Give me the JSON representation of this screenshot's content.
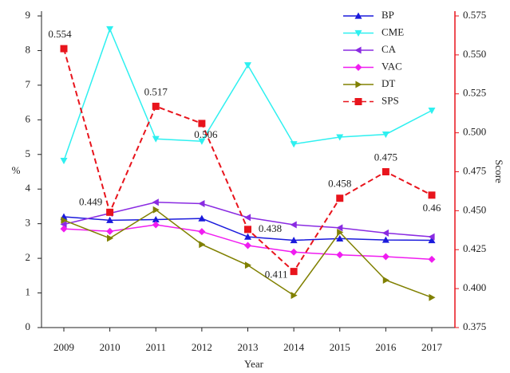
{
  "chart_data": {
    "type": "line",
    "x_label": "Year",
    "y_label": "%",
    "y2_label": "Score",
    "categories": [
      "2009",
      "2010",
      "2011",
      "2012",
      "2013",
      "2014",
      "2015",
      "2016",
      "2017"
    ],
    "ylim": [
      0,
      9
    ],
    "yticks": [
      0,
      1,
      2,
      3,
      4,
      5,
      6,
      7,
      8,
      9
    ],
    "y2lim": [
      0.375,
      0.575
    ],
    "y2ticks": [
      0.375,
      {
        "value": 0.4,
        "label": "0.400"
      },
      0.425,
      {
        "value": 0.45,
        "label": "0.450"
      },
      0.475,
      {
        "value": 0.5,
        "label": "0.500"
      },
      0.525,
      {
        "value": 0.55,
        "label": "0.550"
      },
      0.575
    ],
    "y2color": "#e8141c",
    "legend": "upper right",
    "series": [
      {
        "name": "BP",
        "color": "#1a1adc",
        "marker": "triangle-up",
        "values": [
          3.2,
          3.1,
          3.12,
          3.15,
          2.62,
          2.52,
          2.57,
          2.53,
          2.52
        ]
      },
      {
        "name": "CME",
        "color": "#2ef0f0",
        "marker": "triangle-down",
        "values": [
          4.82,
          8.62,
          5.45,
          5.38,
          7.58,
          5.3,
          5.5,
          5.58,
          6.27
        ]
      },
      {
        "name": "CA",
        "color": "#8a2be2",
        "marker": "triangle-left",
        "values": [
          2.98,
          3.3,
          3.62,
          3.58,
          3.18,
          2.97,
          2.88,
          2.73,
          2.62
        ]
      },
      {
        "name": "VAC",
        "color": "#f01cf0",
        "marker": "diamond",
        "values": [
          2.85,
          2.78,
          2.97,
          2.77,
          2.37,
          2.18,
          2.1,
          2.05,
          1.97
        ]
      },
      {
        "name": "DT",
        "color": "#808000",
        "marker": "triangle-right",
        "values": [
          3.1,
          2.58,
          3.4,
          2.4,
          1.8,
          0.93,
          2.75,
          1.37,
          0.87
        ]
      },
      {
        "name": "SPS",
        "color": "#e8141c",
        "marker": "square",
        "dashed": true,
        "axis": "y2",
        "data_labels": true,
        "values": [
          0.554,
          0.449,
          0.517,
          0.506,
          0.438,
          0.411,
          0.458,
          0.475,
          0.46
        ]
      }
    ]
  }
}
